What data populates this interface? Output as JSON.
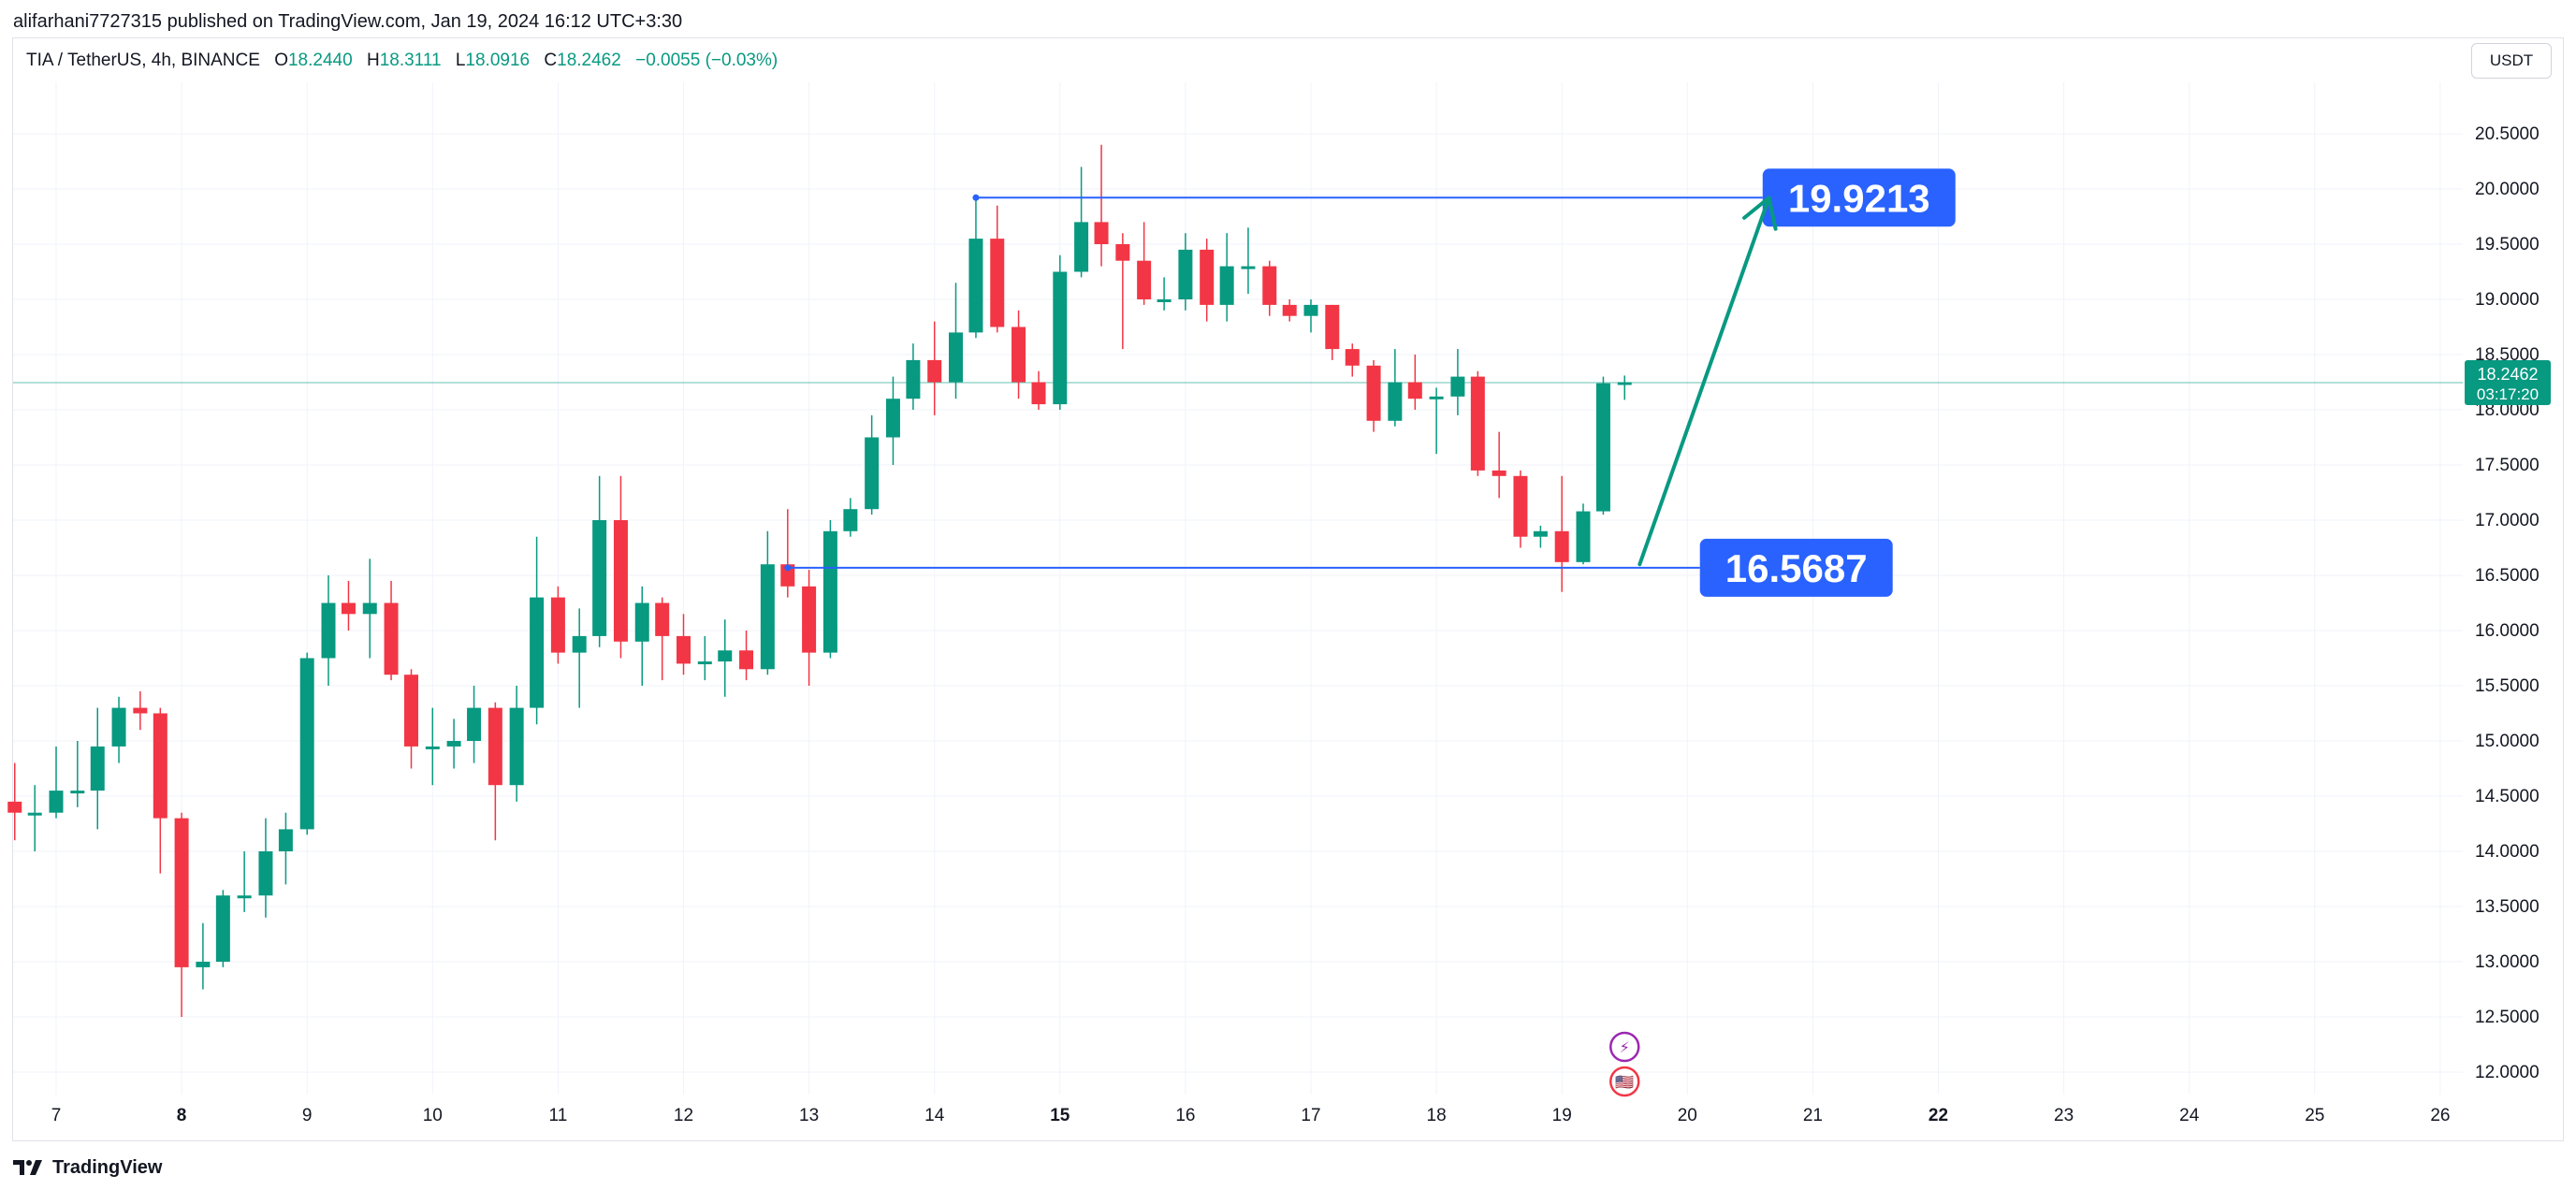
{
  "header": {
    "publish_line": "alifarhani7727315 published on TradingView.com, Jan 19, 2024 16:12 UTC+3:30"
  },
  "legend": {
    "symbol": "TIA / TetherUS, 4h, BINANCE",
    "o_label": "O",
    "o_value": "18.2440",
    "h_label": "H",
    "h_value": "18.3111",
    "l_label": "L",
    "l_value": "18.0916",
    "c_label": "C",
    "c_value": "18.2462",
    "change": "−0.0055 (−0.03%)"
  },
  "toolbar": {
    "currency": "USDT"
  },
  "footer": {
    "brand": "TradingView"
  },
  "colors": {
    "up": "#089981",
    "down": "#f23645",
    "level_line": "#2962ff",
    "level_label_bg": "#2962ff",
    "arrow": "#089981",
    "grid": "#f0f3fa",
    "axis_text": "#131722"
  },
  "chart_data": {
    "type": "candlestick",
    "symbol": "TIA / TetherUS",
    "timeframe": "4h",
    "exchange": "BINANCE",
    "ylim": [
      11.8,
      20.7
    ],
    "y_ticks": [
      "20.5000",
      "20.0000",
      "19.5000",
      "19.0000",
      "18.5000",
      "18.0000",
      "17.5000",
      "17.0000",
      "16.5000",
      "16.0000",
      "15.5000",
      "15.0000",
      "14.5000",
      "14.0000",
      "13.5000",
      "13.0000",
      "12.5000",
      "12.0000"
    ],
    "x_ticks": [
      {
        "label": "7",
        "day": 7,
        "bold": false
      },
      {
        "label": "8",
        "day": 8,
        "bold": true
      },
      {
        "label": "9",
        "day": 9,
        "bold": false
      },
      {
        "label": "10",
        "day": 10,
        "bold": false
      },
      {
        "label": "11",
        "day": 11,
        "bold": false
      },
      {
        "label": "12",
        "day": 12,
        "bold": false
      },
      {
        "label": "13",
        "day": 13,
        "bold": false
      },
      {
        "label": "14",
        "day": 14,
        "bold": false
      },
      {
        "label": "15",
        "day": 15,
        "bold": true
      },
      {
        "label": "16",
        "day": 16,
        "bold": false
      },
      {
        "label": "17",
        "day": 17,
        "bold": false
      },
      {
        "label": "18",
        "day": 18,
        "bold": false
      },
      {
        "label": "19",
        "day": 19,
        "bold": false
      },
      {
        "label": "20",
        "day": 20,
        "bold": false
      },
      {
        "label": "21",
        "day": 21,
        "bold": false
      },
      {
        "label": "22",
        "day": 22,
        "bold": true
      },
      {
        "label": "23",
        "day": 23,
        "bold": false
      },
      {
        "label": "24",
        "day": 24,
        "bold": false
      },
      {
        "label": "25",
        "day": 25,
        "bold": false
      },
      {
        "label": "26",
        "day": 26,
        "bold": false
      }
    ],
    "candles": [
      {
        "t": 6.67,
        "o": 14.45,
        "h": 14.8,
        "l": 14.1,
        "c": 14.35
      },
      {
        "t": 6.83,
        "o": 14.35,
        "h": 14.6,
        "l": 14.0,
        "c": 14.35
      },
      {
        "t": 7.0,
        "o": 14.35,
        "h": 14.95,
        "l": 14.3,
        "c": 14.55
      },
      {
        "t": 7.17,
        "o": 14.55,
        "h": 15.0,
        "l": 14.4,
        "c": 14.55
      },
      {
        "t": 7.33,
        "o": 14.55,
        "h": 15.3,
        "l": 14.2,
        "c": 14.95
      },
      {
        "t": 7.5,
        "o": 14.95,
        "h": 15.4,
        "l": 14.8,
        "c": 15.3
      },
      {
        "t": 7.67,
        "o": 15.3,
        "h": 15.45,
        "l": 15.1,
        "c": 15.25
      },
      {
        "t": 7.83,
        "o": 15.25,
        "h": 15.3,
        "l": 13.8,
        "c": 14.3
      },
      {
        "t": 8.0,
        "o": 14.3,
        "h": 14.35,
        "l": 12.5,
        "c": 12.95
      },
      {
        "t": 8.17,
        "o": 12.95,
        "h": 13.35,
        "l": 12.75,
        "c": 13.0
      },
      {
        "t": 8.33,
        "o": 13.0,
        "h": 13.65,
        "l": 12.95,
        "c": 13.6
      },
      {
        "t": 8.5,
        "o": 13.6,
        "h": 14.0,
        "l": 13.45,
        "c": 13.6
      },
      {
        "t": 8.67,
        "o": 13.6,
        "h": 14.3,
        "l": 13.4,
        "c": 14.0
      },
      {
        "t": 8.83,
        "o": 14.0,
        "h": 14.35,
        "l": 13.7,
        "c": 14.2
      },
      {
        "t": 9.0,
        "o": 14.2,
        "h": 15.8,
        "l": 14.15,
        "c": 15.75
      },
      {
        "t": 9.17,
        "o": 15.75,
        "h": 16.5,
        "l": 15.5,
        "c": 16.25
      },
      {
        "t": 9.33,
        "o": 16.25,
        "h": 16.45,
        "l": 16.0,
        "c": 16.15
      },
      {
        "t": 9.5,
        "o": 16.15,
        "h": 16.65,
        "l": 15.75,
        "c": 16.25
      },
      {
        "t": 9.67,
        "o": 16.25,
        "h": 16.45,
        "l": 15.55,
        "c": 15.6
      },
      {
        "t": 9.83,
        "o": 15.6,
        "h": 15.65,
        "l": 14.75,
        "c": 14.95
      },
      {
        "t": 10.0,
        "o": 14.95,
        "h": 15.3,
        "l": 14.6,
        "c": 14.95
      },
      {
        "t": 10.17,
        "o": 14.95,
        "h": 15.2,
        "l": 14.75,
        "c": 15.0
      },
      {
        "t": 10.33,
        "o": 15.0,
        "h": 15.5,
        "l": 14.8,
        "c": 15.3
      },
      {
        "t": 10.5,
        "o": 15.3,
        "h": 15.35,
        "l": 14.1,
        "c": 14.6
      },
      {
        "t": 10.67,
        "o": 14.6,
        "h": 15.5,
        "l": 14.45,
        "c": 15.3
      },
      {
        "t": 10.83,
        "o": 15.3,
        "h": 16.85,
        "l": 15.15,
        "c": 16.3
      },
      {
        "t": 11.0,
        "o": 16.3,
        "h": 16.4,
        "l": 15.7,
        "c": 15.8
      },
      {
        "t": 11.17,
        "o": 15.8,
        "h": 16.2,
        "l": 15.3,
        "c": 15.95
      },
      {
        "t": 11.33,
        "o": 15.95,
        "h": 17.4,
        "l": 15.85,
        "c": 17.0
      },
      {
        "t": 11.5,
        "o": 17.0,
        "h": 17.4,
        "l": 15.75,
        "c": 15.9
      },
      {
        "t": 11.67,
        "o": 15.9,
        "h": 16.4,
        "l": 15.5,
        "c": 16.25
      },
      {
        "t": 11.83,
        "o": 16.25,
        "h": 16.3,
        "l": 15.55,
        "c": 15.95
      },
      {
        "t": 12.0,
        "o": 15.95,
        "h": 16.15,
        "l": 15.6,
        "c": 15.7
      },
      {
        "t": 12.17,
        "o": 15.7,
        "h": 15.95,
        "l": 15.55,
        "c": 15.72
      },
      {
        "t": 12.33,
        "o": 15.72,
        "h": 16.1,
        "l": 15.4,
        "c": 15.82
      },
      {
        "t": 12.5,
        "o": 15.82,
        "h": 16.0,
        "l": 15.55,
        "c": 15.65
      },
      {
        "t": 12.67,
        "o": 15.65,
        "h": 16.9,
        "l": 15.6,
        "c": 16.6
      },
      {
        "t": 12.83,
        "o": 16.6,
        "h": 17.1,
        "l": 16.3,
        "c": 16.4
      },
      {
        "t": 13.0,
        "o": 16.4,
        "h": 16.55,
        "l": 15.5,
        "c": 15.8
      },
      {
        "t": 13.17,
        "o": 15.8,
        "h": 17.0,
        "l": 15.75,
        "c": 16.9
      },
      {
        "t": 13.33,
        "o": 16.9,
        "h": 17.2,
        "l": 16.85,
        "c": 17.1
      },
      {
        "t": 13.5,
        "o": 17.1,
        "h": 17.95,
        "l": 17.05,
        "c": 17.75
      },
      {
        "t": 13.67,
        "o": 17.75,
        "h": 18.3,
        "l": 17.5,
        "c": 18.1
      },
      {
        "t": 13.83,
        "o": 18.1,
        "h": 18.6,
        "l": 18.0,
        "c": 18.45
      },
      {
        "t": 14.0,
        "o": 18.45,
        "h": 18.8,
        "l": 17.95,
        "c": 18.25
      },
      {
        "t": 14.17,
        "o": 18.25,
        "h": 19.15,
        "l": 18.1,
        "c": 18.7
      },
      {
        "t": 14.33,
        "o": 18.7,
        "h": 19.95,
        "l": 18.65,
        "c": 19.55
      },
      {
        "t": 14.5,
        "o": 19.55,
        "h": 19.85,
        "l": 18.7,
        "c": 18.75
      },
      {
        "t": 14.67,
        "o": 18.75,
        "h": 18.9,
        "l": 18.1,
        "c": 18.25
      },
      {
        "t": 14.83,
        "o": 18.25,
        "h": 18.35,
        "l": 18.0,
        "c": 18.05
      },
      {
        "t": 15.0,
        "o": 18.05,
        "h": 19.4,
        "l": 18.0,
        "c": 19.25
      },
      {
        "t": 15.17,
        "o": 19.25,
        "h": 20.2,
        "l": 19.2,
        "c": 19.7
      },
      {
        "t": 15.33,
        "o": 19.7,
        "h": 20.4,
        "l": 19.3,
        "c": 19.5
      },
      {
        "t": 15.5,
        "o": 19.5,
        "h": 19.6,
        "l": 18.55,
        "c": 19.35
      },
      {
        "t": 15.67,
        "o": 19.35,
        "h": 19.7,
        "l": 18.95,
        "c": 19.0
      },
      {
        "t": 15.83,
        "o": 19.0,
        "h": 19.2,
        "l": 18.9,
        "c": 19.0
      },
      {
        "t": 16.0,
        "o": 19.0,
        "h": 19.6,
        "l": 18.9,
        "c": 19.45
      },
      {
        "t": 16.17,
        "o": 19.45,
        "h": 19.55,
        "l": 18.8,
        "c": 18.95
      },
      {
        "t": 16.33,
        "o": 18.95,
        "h": 19.6,
        "l": 18.8,
        "c": 19.3
      },
      {
        "t": 16.5,
        "o": 19.3,
        "h": 19.65,
        "l": 19.05,
        "c": 19.3
      },
      {
        "t": 16.67,
        "o": 19.3,
        "h": 19.35,
        "l": 18.85,
        "c": 18.95
      },
      {
        "t": 16.83,
        "o": 18.95,
        "h": 19.0,
        "l": 18.8,
        "c": 18.85
      },
      {
        "t": 17.0,
        "o": 18.85,
        "h": 19.0,
        "l": 18.7,
        "c": 18.95
      },
      {
        "t": 17.17,
        "o": 18.95,
        "h": 18.95,
        "l": 18.45,
        "c": 18.55
      },
      {
        "t": 17.33,
        "o": 18.55,
        "h": 18.6,
        "l": 18.3,
        "c": 18.4
      },
      {
        "t": 17.5,
        "o": 18.4,
        "h": 18.45,
        "l": 17.8,
        "c": 17.9
      },
      {
        "t": 17.67,
        "o": 17.9,
        "h": 18.55,
        "l": 17.85,
        "c": 18.25
      },
      {
        "t": 17.83,
        "o": 18.25,
        "h": 18.5,
        "l": 18.0,
        "c": 18.1
      },
      {
        "t": 18.0,
        "o": 18.1,
        "h": 18.2,
        "l": 17.6,
        "c": 18.12
      },
      {
        "t": 18.17,
        "o": 18.12,
        "h": 18.55,
        "l": 17.95,
        "c": 18.3
      },
      {
        "t": 18.33,
        "o": 18.3,
        "h": 18.35,
        "l": 17.4,
        "c": 17.45
      },
      {
        "t": 18.5,
        "o": 17.45,
        "h": 17.8,
        "l": 17.2,
        "c": 17.4
      },
      {
        "t": 18.67,
        "o": 17.4,
        "h": 17.45,
        "l": 16.75,
        "c": 16.85
      },
      {
        "t": 18.83,
        "o": 16.85,
        "h": 16.95,
        "l": 16.75,
        "c": 16.9
      },
      {
        "t": 19.0,
        "o": 16.9,
        "h": 17.4,
        "l": 16.35,
        "c": 16.62
      },
      {
        "t": 19.17,
        "o": 16.62,
        "h": 17.15,
        "l": 16.6,
        "c": 17.08
      },
      {
        "t": 19.33,
        "o": 17.08,
        "h": 18.3,
        "l": 17.05,
        "c": 18.24
      },
      {
        "t": 19.5,
        "o": 18.24,
        "h": 18.31,
        "l": 18.09,
        "c": 18.25
      }
    ],
    "last_price": {
      "value": 18.2462,
      "label": "18.2462",
      "countdown": "03:17:20"
    },
    "levels": [
      {
        "name": "resistance",
        "value": 19.9213,
        "label": "19.9213",
        "from_day": 14.33,
        "to_day": 20.6
      },
      {
        "name": "support",
        "value": 16.5687,
        "label": "16.5687",
        "from_day": 12.83,
        "to_day": 20.1
      }
    ],
    "arrow": {
      "from": {
        "day": 19.62,
        "price": 16.6
      },
      "to": {
        "day": 20.65,
        "price": 19.92
      }
    },
    "event_icons": [
      {
        "name": "lightning-event-icon",
        "day": 19.5,
        "glyph": "⚡"
      },
      {
        "name": "us-flag-event-icon",
        "day": 19.5,
        "glyph": "🇺🇸"
      }
    ]
  }
}
